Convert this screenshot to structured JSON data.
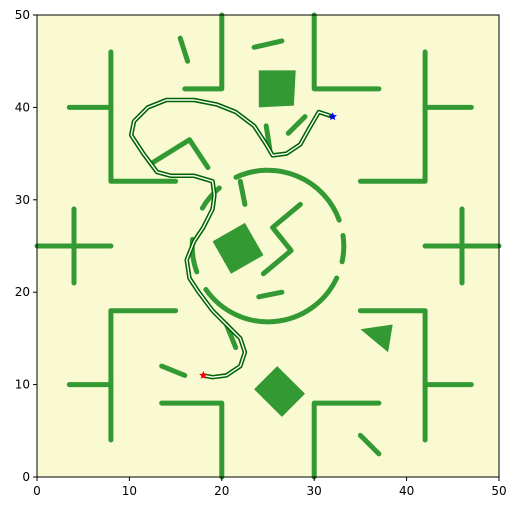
{
  "chart_data": {
    "type": "scatter",
    "xlim": [
      0,
      50
    ],
    "ylim": [
      0,
      50
    ],
    "x_ticks": [
      "0",
      "10",
      "20",
      "30",
      "40",
      "50"
    ],
    "y_ticks": [
      "0",
      "10",
      "20",
      "30",
      "40",
      "50"
    ],
    "grid": false,
    "background_color": "#fafad2",
    "obstacle_color": "#339933",
    "path_color": "#006400",
    "start_color": "#ff0000",
    "goal_color": "#0000ff",
    "start": {
      "x": 18,
      "y": 11,
      "marker": "star"
    },
    "goal": {
      "x": 32,
      "y": 39,
      "marker": "star"
    },
    "walls": [
      [
        [
          20,
          50
        ],
        [
          20,
          42
        ],
        [
          16,
          42
        ]
      ],
      [
        [
          30,
          50
        ],
        [
          30,
          42
        ],
        [
          37,
          42
        ]
      ],
      [
        [
          8,
          46
        ],
        [
          8,
          32
        ],
        [
          15,
          32
        ]
      ],
      [
        [
          3.5,
          40
        ],
        [
          8,
          40
        ]
      ],
      [
        [
          42,
          46
        ],
        [
          42,
          32
        ],
        [
          35,
          32
        ]
      ],
      [
        [
          42,
          40
        ],
        [
          47,
          40
        ]
      ],
      [
        [
          0,
          25
        ],
        [
          8,
          25
        ]
      ],
      [
        [
          4,
          29
        ],
        [
          4,
          21
        ]
      ],
      [
        [
          42,
          25
        ],
        [
          50,
          25
        ]
      ],
      [
        [
          46,
          29
        ],
        [
          46,
          21
        ]
      ],
      [
        [
          8,
          4
        ],
        [
          8,
          18
        ],
        [
          15,
          18
        ]
      ],
      [
        [
          3.5,
          10
        ],
        [
          8,
          10
        ]
      ],
      [
        [
          42,
          4
        ],
        [
          42,
          18
        ],
        [
          35,
          18
        ]
      ],
      [
        [
          42,
          10
        ],
        [
          47,
          10
        ]
      ],
      [
        [
          20,
          0
        ],
        [
          20,
          8
        ],
        [
          13.5,
          8
        ]
      ],
      [
        [
          30,
          0
        ],
        [
          30,
          8
        ],
        [
          37,
          8
        ]
      ],
      [
        [
          15.5,
          47.5
        ],
        [
          16.3,
          45
        ]
      ],
      [
        [
          23.5,
          46.5
        ],
        [
          26.5,
          47.2
        ]
      ],
      [
        [
          24.8,
          38
        ],
        [
          25.2,
          35.5
        ]
      ],
      [
        [
          27.2,
          37.2
        ],
        [
          29,
          39
        ]
      ],
      [
        [
          12.5,
          34
        ],
        [
          16.5,
          36.5
        ],
        [
          18.5,
          33.5
        ]
      ],
      [
        [
          22,
          32
        ],
        [
          22.5,
          29.5
        ]
      ],
      [
        [
          28.5,
          29.5
        ],
        [
          25.5,
          27
        ],
        [
          27.5,
          24.5
        ],
        [
          24.5,
          22
        ]
      ],
      [
        [
          24,
          19.5
        ],
        [
          26.5,
          20
        ]
      ],
      [
        [
          20.5,
          16.5
        ],
        [
          21.5,
          14
        ]
      ],
      [
        [
          13.5,
          12
        ],
        [
          16,
          11
        ]
      ],
      [
        [
          35,
          4.5
        ],
        [
          37,
          2.5
        ]
      ]
    ],
    "ring": {
      "cx": 25,
      "cy": 25,
      "r": 8.2,
      "arcs": [
        [
          20,
          115
        ],
        [
          130,
          150
        ],
        [
          175,
          200
        ],
        [
          215,
          335
        ],
        [
          348,
          360
        ],
        [
          0,
          8
        ]
      ]
    },
    "blocks": [
      {
        "type": "polygon",
        "points": [
          [
            24,
            44
          ],
          [
            28,
            44
          ],
          [
            27.8,
            40.2
          ],
          [
            24,
            40
          ]
        ]
      },
      {
        "type": "polygon",
        "points": [
          [
            19,
            25.5
          ],
          [
            22.5,
            27.5
          ],
          [
            24.5,
            24
          ],
          [
            21,
            22
          ]
        ]
      },
      {
        "type": "polygon",
        "points": [
          [
            23.5,
            9.5
          ],
          [
            26,
            12
          ],
          [
            29,
            9
          ],
          [
            26.5,
            6.5
          ]
        ]
      },
      {
        "type": "polygon",
        "points": [
          [
            35,
            16
          ],
          [
            38.5,
            16.5
          ],
          [
            38,
            13.5
          ]
        ]
      }
    ],
    "path": [
      [
        18,
        11
      ],
      [
        19,
        10.8
      ],
      [
        20.5,
        11
      ],
      [
        22,
        12
      ],
      [
        22.5,
        13.5
      ],
      [
        22,
        15
      ],
      [
        20.5,
        16.5
      ],
      [
        19,
        18
      ],
      [
        17.5,
        20
      ],
      [
        16.5,
        21.5
      ],
      [
        16.2,
        23.5
      ],
      [
        17,
        25.5
      ],
      [
        18,
        27
      ],
      [
        19,
        29
      ],
      [
        19.2,
        30.5
      ],
      [
        19,
        32
      ],
      [
        17,
        32.6
      ],
      [
        14.5,
        32.6
      ],
      [
        13,
        33
      ],
      [
        11.5,
        35
      ],
      [
        10.2,
        37
      ],
      [
        10.5,
        38.5
      ],
      [
        12,
        40
      ],
      [
        14,
        40.8
      ],
      [
        17,
        40.8
      ],
      [
        19.5,
        40.3
      ],
      [
        21.5,
        39.5
      ],
      [
        23.5,
        38
      ],
      [
        24.8,
        36
      ],
      [
        25.5,
        34.8
      ],
      [
        27,
        35
      ],
      [
        28.5,
        36
      ],
      [
        29.5,
        37.8
      ],
      [
        30.5,
        39.5
      ],
      [
        32,
        39
      ]
    ]
  }
}
